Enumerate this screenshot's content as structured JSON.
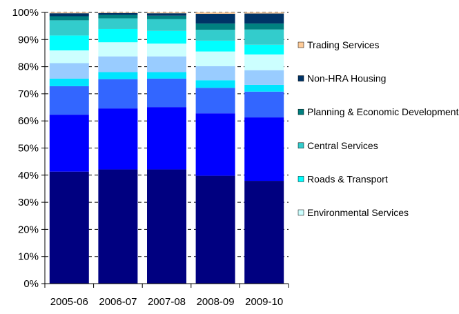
{
  "chart_data": {
    "type": "bar",
    "stacked": true,
    "categories": [
      "2005-06",
      "2006-07",
      "2007-08",
      "2008-09",
      "2009-10"
    ],
    "ylim": [
      0,
      100
    ],
    "yticks": [
      "0%",
      "10%",
      "20%",
      "30%",
      "40%",
      "50%",
      "60%",
      "70%",
      "80%",
      "90%",
      "100%"
    ],
    "grid": "horizontal dashed",
    "legend_position": "right",
    "series": [
      {
        "name": "",
        "color": "#000080",
        "values": [
          41.3,
          42.1,
          42.1,
          39.8,
          37.9
        ]
      },
      {
        "name": "",
        "color": "#0000ff",
        "values": [
          21.0,
          22.5,
          23.0,
          23.0,
          23.4
        ]
      },
      {
        "name": "",
        "color": "#3366ff",
        "values": [
          10.5,
          10.8,
          10.5,
          9.4,
          9.5
        ]
      },
      {
        "name": "",
        "color": "#00e5ff",
        "values": [
          2.8,
          2.6,
          2.4,
          2.8,
          2.5
        ]
      },
      {
        "name": "",
        "color": "#99ccff",
        "values": [
          5.7,
          5.8,
          5.8,
          5.2,
          5.4
        ]
      },
      {
        "name": "Environmental Services",
        "color": "#ccffff",
        "values": [
          4.7,
          5.2,
          4.7,
          5.4,
          5.8
        ]
      },
      {
        "name": "Roads & Transport",
        "color": "#00ffff",
        "values": [
          5.5,
          4.9,
          4.7,
          4.0,
          3.6
        ]
      },
      {
        "name": "Central Services",
        "color": "#33cccc",
        "values": [
          5.6,
          3.9,
          4.3,
          4.0,
          5.6
        ]
      },
      {
        "name": "Planning & Economic Development",
        "color": "#008080",
        "values": [
          1.5,
          1.3,
          1.3,
          2.3,
          2.2
        ]
      },
      {
        "name": "Non-HRA Housing",
        "color": "#003366",
        "values": [
          1.1,
          0.7,
          0.9,
          3.6,
          3.7
        ]
      },
      {
        "name": "Trading Services",
        "color": "#ffcc99",
        "values": [
          0.3,
          0.2,
          0.3,
          0.5,
          0.4
        ]
      }
    ],
    "legend": [
      {
        "label": "Trading Services",
        "color": "#ffcc99"
      },
      {
        "label": "Non-HRA Housing",
        "color": "#003366"
      },
      {
        "label": "Planning & Economic Development",
        "color": "#008080"
      },
      {
        "label": "Central Services",
        "color": "#33cccc"
      },
      {
        "label": "Roads & Transport",
        "color": "#00ffff"
      },
      {
        "label": "Environmental Services",
        "color": "#ccffff"
      }
    ]
  }
}
